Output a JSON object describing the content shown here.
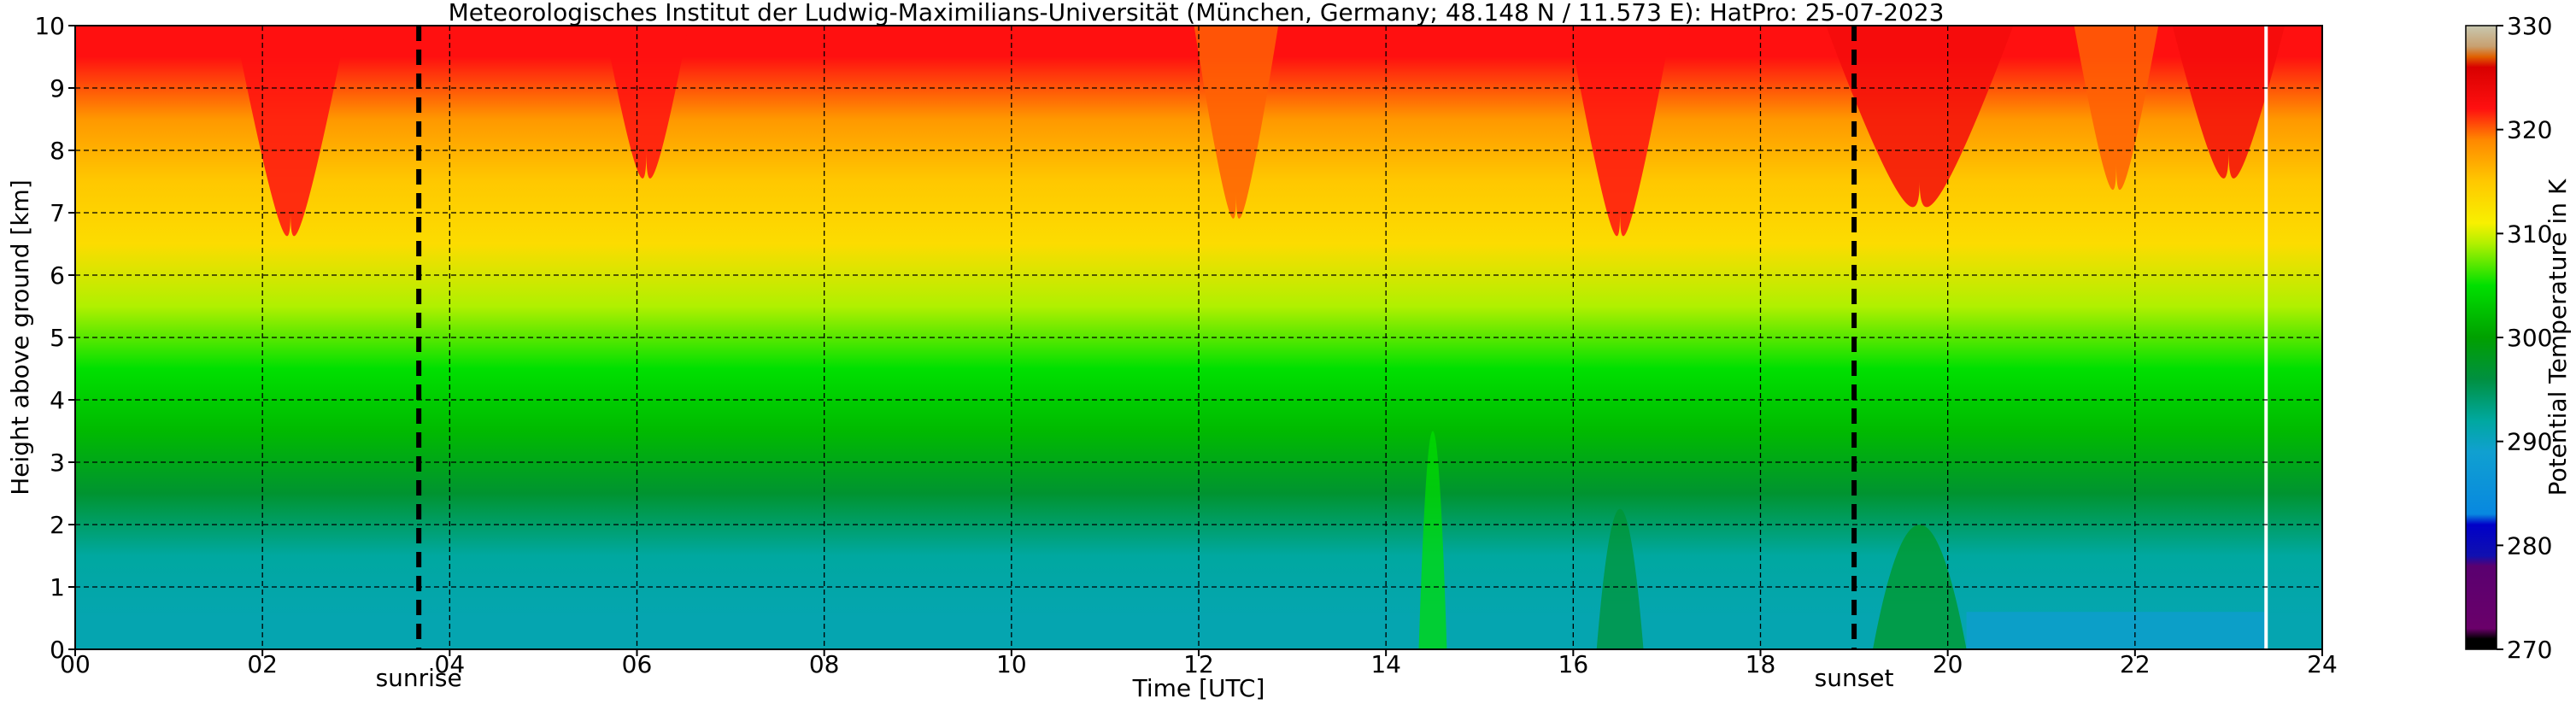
{
  "chart_data": {
    "type": "heatmap",
    "title": "Meteorologisches Institut der Ludwig-Maximilians-Universität (München, Germany; 48.148 N / 11.573 E):    HatPro: 25-07-2023",
    "xlabel": "Time [UTC]",
    "ylabel": "Height above ground [km]",
    "xlim": [
      0,
      24
    ],
    "ylim": [
      0,
      10
    ],
    "x_ticks": [
      "00",
      "02",
      "04",
      "06",
      "08",
      "10",
      "12",
      "14",
      "16",
      "18",
      "20",
      "22",
      "24"
    ],
    "y_ticks": [
      "0",
      "1",
      "2",
      "3",
      "4",
      "5",
      "6",
      "7",
      "8",
      "9",
      "10"
    ],
    "grid": true,
    "colorbar": {
      "label": "Potential Temperature in K",
      "range": [
        270,
        330
      ],
      "ticks": [
        "270",
        "280",
        "290",
        "300",
        "310",
        "320",
        "330"
      ],
      "colors": [
        {
          "value": 270,
          "color": "#000000"
        },
        {
          "value": 271,
          "color": "#000000"
        },
        {
          "value": 272,
          "color": "#6a006a"
        },
        {
          "value": 278,
          "color": "#5a0070"
        },
        {
          "value": 279,
          "color": "#1010b0"
        },
        {
          "value": 282,
          "color": "#0000c8"
        },
        {
          "value": 283,
          "color": "#0888e0"
        },
        {
          "value": 289,
          "color": "#10a0d0"
        },
        {
          "value": 292,
          "color": "#00a8a0"
        },
        {
          "value": 296,
          "color": "#009040"
        },
        {
          "value": 300,
          "color": "#00a000"
        },
        {
          "value": 305,
          "color": "#00e000"
        },
        {
          "value": 309,
          "color": "#b0f000"
        },
        {
          "value": 311,
          "color": "#f8f000"
        },
        {
          "value": 315,
          "color": "#ffc800"
        },
        {
          "value": 319,
          "color": "#ff8800"
        },
        {
          "value": 322,
          "color": "#ff1010"
        },
        {
          "value": 326,
          "color": "#d80000"
        },
        {
          "value": 327,
          "color": "#e06000"
        },
        {
          "value": 328,
          "color": "#c8a070"
        },
        {
          "value": 330,
          "color": "#c8c8b0"
        }
      ]
    },
    "events": [
      {
        "label": "sunrise",
        "time": 3.67
      },
      {
        "label": "sunset",
        "time": 19.0
      }
    ],
    "layers": [
      {
        "height_km": 0.5,
        "temperature_K": 291
      },
      {
        "height_km": 1.5,
        "temperature_K": 292
      },
      {
        "height_km": 2.5,
        "temperature_K": 297
      },
      {
        "height_km": 3.5,
        "temperature_K": 302
      },
      {
        "height_km": 4.5,
        "temperature_K": 305
      },
      {
        "height_km": 5.5,
        "temperature_K": 309
      },
      {
        "height_km": 6.5,
        "temperature_K": 313
      },
      {
        "height_km": 7.5,
        "temperature_K": 315
      },
      {
        "height_km": 8.5,
        "temperature_K": 318
      },
      {
        "height_km": 9.5,
        "temperature_K": 322
      }
    ],
    "data_gap_time": 23.4
  }
}
